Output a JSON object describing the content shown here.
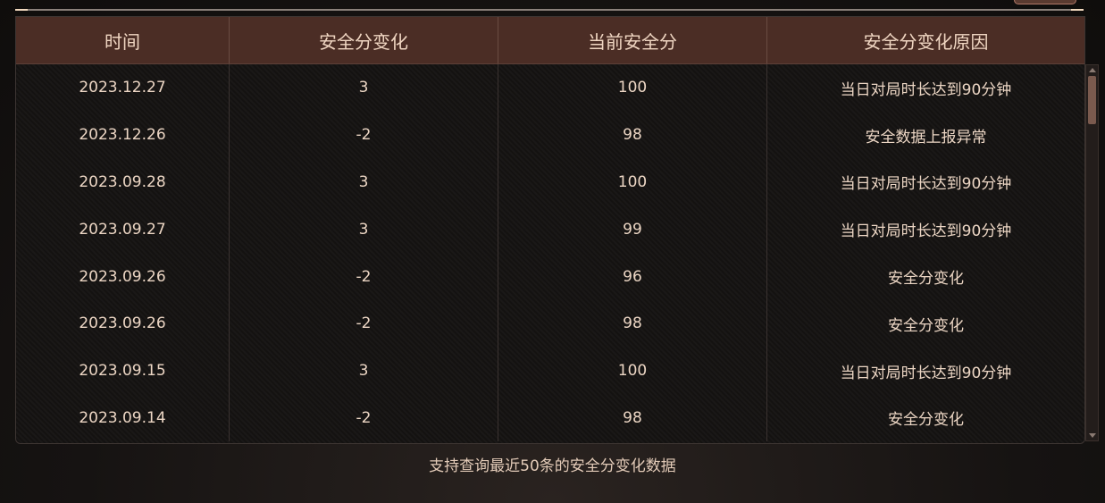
{
  "table": {
    "headers": [
      "时间",
      "安全分变化",
      "当前安全分",
      "安全分变化原因"
    ],
    "rows": [
      [
        "2023.12.27",
        "3",
        "100",
        "当日对局时长达到90分钟"
      ],
      [
        "2023.12.26",
        "-2",
        "98",
        "安全数据上报异常"
      ],
      [
        "2023.09.28",
        "3",
        "100",
        "当日对局时长达到90分钟"
      ],
      [
        "2023.09.27",
        "3",
        "99",
        "当日对局时长达到90分钟"
      ],
      [
        "2023.09.26",
        "-2",
        "96",
        "安全分变化"
      ],
      [
        "2023.09.26",
        "-2",
        "98",
        "安全分变化"
      ],
      [
        "2023.09.15",
        "3",
        "100",
        "当日对局时长达到90分钟"
      ],
      [
        "2023.09.14",
        "-2",
        "98",
        "安全分变化"
      ]
    ]
  },
  "footer": "支持查询最近50条的安全分变化数据",
  "colors": {
    "header_bg": "#4b2d25",
    "text": "#ecd6c4"
  }
}
